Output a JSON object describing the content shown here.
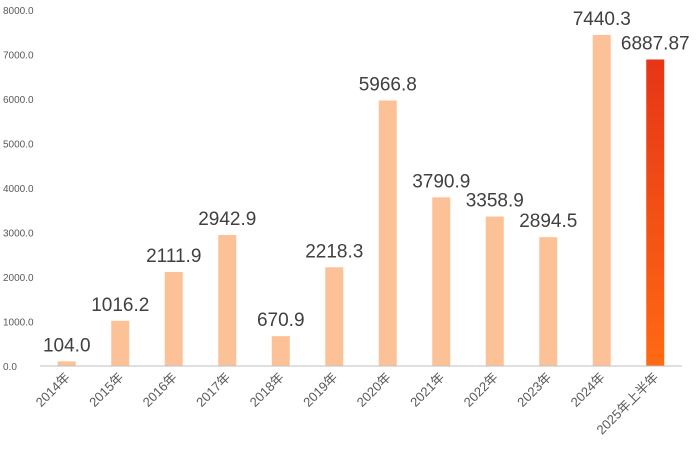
{
  "chart_data": {
    "type": "bar",
    "title": "",
    "xlabel": "",
    "ylabel": "",
    "ylim": [
      0,
      8000
    ],
    "yticks": [
      "0.0",
      "1000.0",
      "2000.0",
      "3000.0",
      "4000.0",
      "5000.0",
      "6000.0",
      "7000.0",
      "8000.0"
    ],
    "categories": [
      "2014年",
      "2015年",
      "2016年",
      "2017年",
      "2018年",
      "2019年",
      "2020年",
      "2021年",
      "2022年",
      "2023年",
      "2024年",
      "2025年上半年"
    ],
    "values": [
      104.0,
      1016.2,
      2111.9,
      2942.9,
      670.9,
      2218.3,
      5966.8,
      3790.9,
      3358.9,
      2894.5,
      7440.3,
      6887.87
    ],
    "value_labels": [
      "104.0",
      "1016.2",
      "2111.9",
      "2942.9",
      "670.9",
      "2218.3",
      "5966.8",
      "3790.9",
      "3358.9",
      "2894.5",
      "7440.3",
      "6887.87"
    ],
    "grid": false,
    "legend": "none",
    "colors": {
      "bar": "#FCC197",
      "highlight_top": "#E63517",
      "highlight_bottom": "#FF6A13",
      "axis": "#BFBFBF",
      "tick_text": "#595959",
      "label_text": "#404040"
    }
  }
}
